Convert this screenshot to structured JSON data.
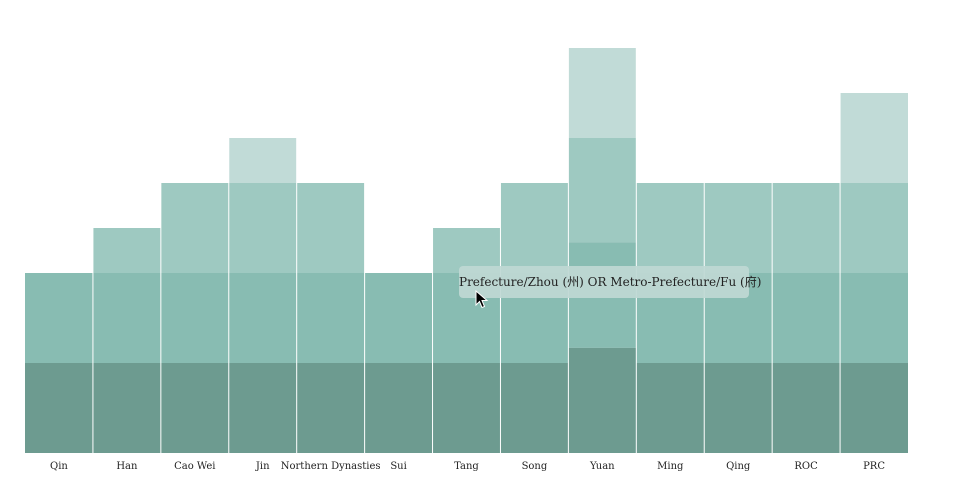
{
  "chart_data": {
    "type": "bar",
    "stacked": true,
    "categories": [
      "Qin",
      "Han",
      "Cao Wei",
      "Jin",
      "Northern Dynasties",
      "Sui",
      "Tang",
      "Song",
      "Yuan",
      "Ming",
      "Qing",
      "ROC",
      "PRC"
    ],
    "series": [
      {
        "color": "#6d9b90",
        "values": [
          1,
          1,
          1,
          1,
          1,
          1,
          1,
          1,
          1.17,
          1,
          1,
          1,
          1
        ]
      },
      {
        "color": "#88bcb2",
        "values": [
          1,
          1,
          1,
          1,
          1,
          1,
          1,
          1,
          1.17,
          1,
          1,
          1,
          1
        ]
      },
      {
        "color": "#9ec9c1",
        "values": [
          0,
          0.5,
          1,
          1,
          1,
          0,
          0.5,
          1,
          1.16,
          1,
          1,
          1,
          1
        ]
      },
      {
        "color": "#c1dbd7",
        "values": [
          0,
          0,
          0,
          0.5,
          0,
          0,
          0,
          0,
          1,
          0,
          0,
          0,
          1
        ]
      }
    ],
    "ylim": [
      0,
      4.5
    ],
    "grid": false,
    "legend": "none"
  },
  "tooltip": {
    "text": "Prefecture/Zhou (州) OR Metro-Prefecture/Fu (府)"
  },
  "highlight": {
    "category": "Yuan",
    "color": "#88bcb2"
  }
}
